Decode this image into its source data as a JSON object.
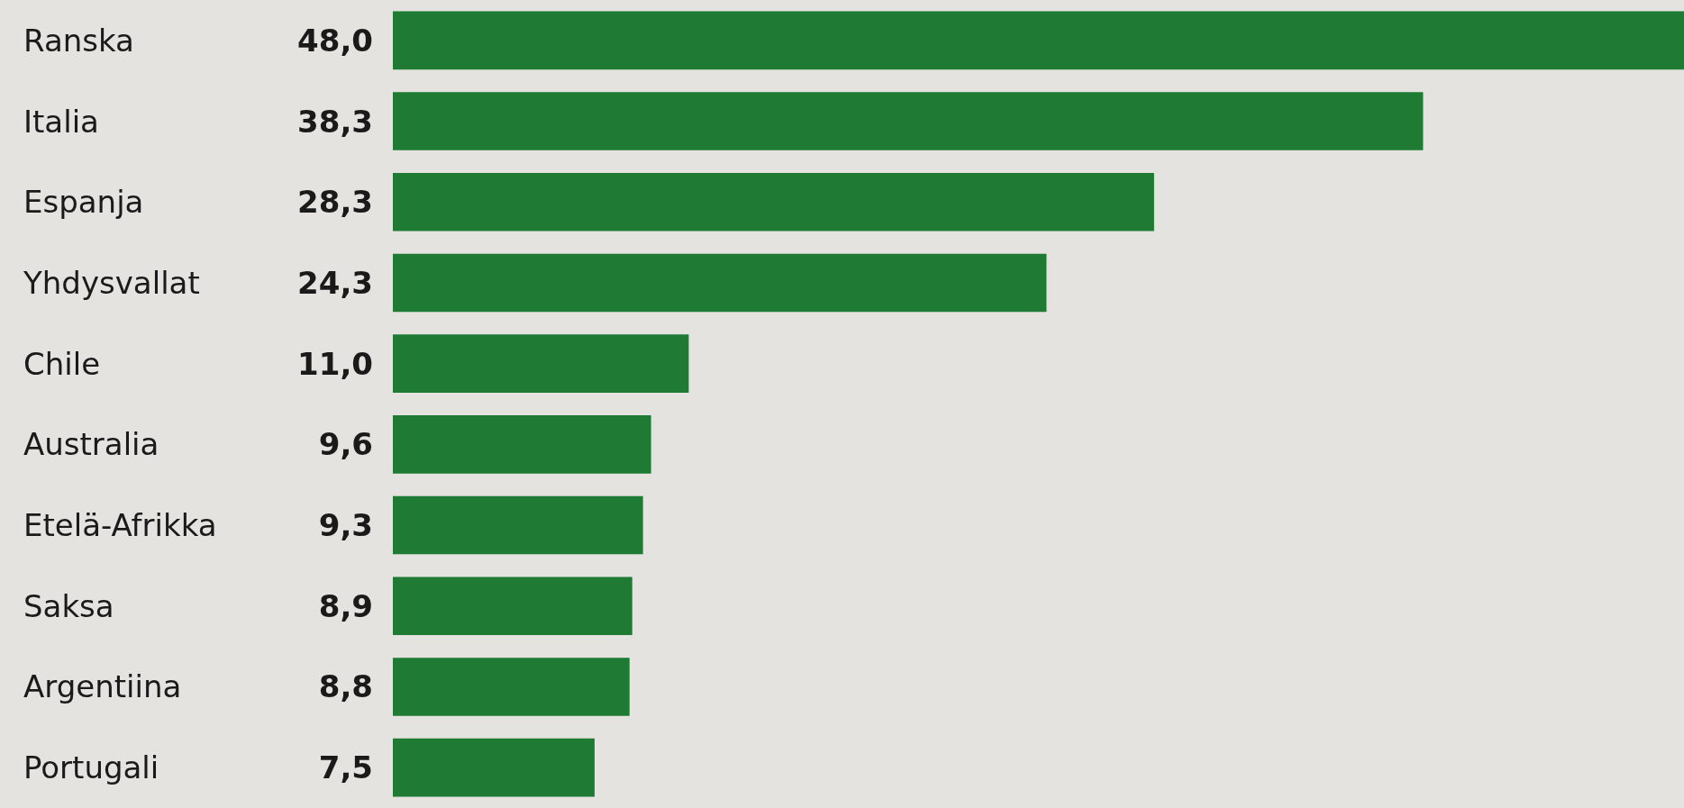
{
  "chart_data": {
    "type": "bar",
    "orientation": "horizontal",
    "categories": [
      "Ranska",
      "Italia",
      "Espanja",
      "Yhdysvallat",
      "Chile",
      "Australia",
      "Etelä-Afrikka",
      "Saksa",
      "Argentiina",
      "Portugali"
    ],
    "values": [
      48.0,
      38.3,
      28.3,
      24.3,
      11.0,
      9.6,
      9.3,
      8.9,
      8.8,
      7.5
    ],
    "value_labels": [
      "48,0",
      "38,3",
      "28,3",
      "24,3",
      "11,0",
      "9,6",
      "9,3",
      "8,9",
      "8,8",
      "7,5"
    ],
    "color": "#1f7a33"
  }
}
